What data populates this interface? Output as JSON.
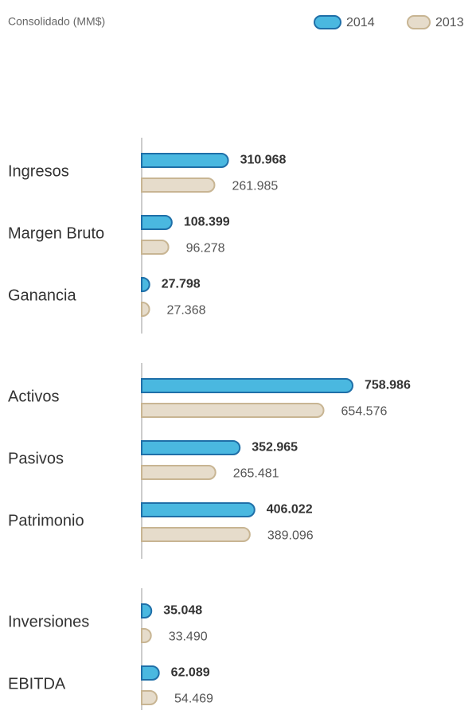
{
  "chart_data": {
    "type": "bar",
    "orientation": "horizontal",
    "subtitle": "Consolidado (MM$)",
    "categories": [
      "Ingresos",
      "Margen Bruto",
      "Ganancia",
      "Activos",
      "Pasivos",
      "Patrimonio",
      "Inversiones",
      "EBITDA"
    ],
    "series": [
      {
        "name": "2014",
        "color": "#4ab8e0",
        "stroke": "#1f6fa8",
        "values": [
          310968,
          108399,
          27798,
          758986,
          352965,
          406022,
          35048,
          62089
        ],
        "value_labels": [
          "310.968",
          "108.399",
          "27.798",
          "758.986",
          "352.965",
          "406.022",
          "35.048",
          "62.089"
        ]
      },
      {
        "name": "2013",
        "color": "#e6dccb",
        "stroke": "#c8b593",
        "values": [
          261985,
          96278,
          27368,
          654576,
          265481,
          389096,
          33490,
          54469
        ],
        "value_labels": [
          "261.985",
          "96.278",
          "27.368",
          "654.576",
          "265.481",
          "389.096",
          "33.490",
          "54.469"
        ]
      }
    ]
  }
}
